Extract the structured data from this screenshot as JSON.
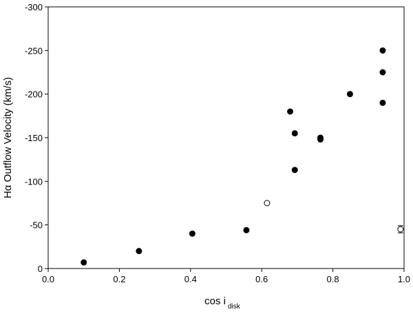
{
  "chart_data": {
    "type": "scatter",
    "y_label": "Hα Outflow Velocity  (km/s)",
    "x_label": "cos i",
    "x_label_subscript": "disk",
    "xlim": [
      0,
      1
    ],
    "xticks": [
      {
        "value": 0,
        "label": "0.0"
      },
      0.2,
      0.4,
      0.6,
      0.8,
      {
        "value": 1,
        "label": "1.0"
      }
    ],
    "ylim": [
      0,
      -300
    ],
    "yticks": [
      -300,
      -250,
      -200,
      -150,
      -100,
      -50,
      0
    ],
    "series": [
      {
        "marker": "filled",
        "color": "#000000",
        "x": [
          0.1,
          0.255,
          0.405,
          0.557,
          0.68,
          0.693,
          0.693,
          0.765,
          0.765,
          0.848,
          0.94,
          0.94,
          0.94
        ],
        "values": [
          -7,
          -20,
          -40,
          -44,
          -180,
          -155,
          -113,
          -150,
          -148,
          -200,
          -250,
          -225,
          -190
        ]
      },
      {
        "marker": "open",
        "color": "#000000",
        "x": [
          0.615,
          0.99
        ],
        "values": [
          -75,
          -45
        ],
        "errors": [
          null,
          4
        ]
      }
    ]
  }
}
